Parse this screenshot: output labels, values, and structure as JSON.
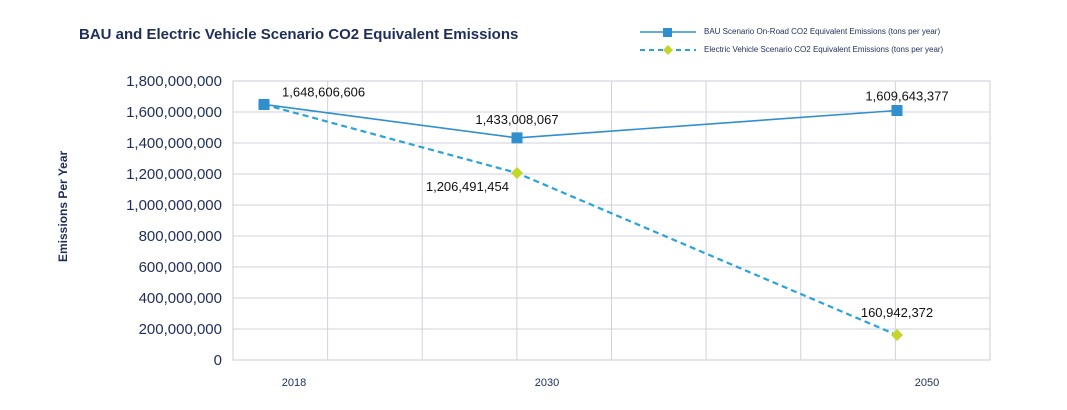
{
  "chart_data": {
    "type": "line",
    "title": "BAU and Electric Vehicle Scenario CO2 Equivalent Emissions",
    "ylabel": "Emissions Per Year",
    "xlabel": "",
    "categories": [
      "2018",
      "2030",
      "2050"
    ],
    "ylim": [
      0,
      1800000000
    ],
    "yticks": [
      "0",
      "200,000,000",
      "400,000,000",
      "600,000,000",
      "800,000,000",
      "1,000,000,000",
      "1,200,000,000",
      "1,400,000,000",
      "1,600,000,000",
      "1,800,000,000"
    ],
    "grid": true,
    "legend_position": "top-right",
    "series": [
      {
        "name": "BAU Scenario On-Road CO2 Equivalent Emissions (tons per year)",
        "values": [
          1648606606,
          1433008067,
          1609643377
        ],
        "labels": [
          "1,648,606,606",
          "1,433,008,067",
          "1,609,643,377"
        ],
        "color": "#2f8fcf",
        "marker": "square",
        "line": "solid"
      },
      {
        "name": "Electric Vehicle Scenario CO2 Equivalent Emissions (tons per year)",
        "values": [
          1648606606,
          1206491454,
          160942372
        ],
        "labels": [
          "",
          "1,206,491,454",
          "160,942,372"
        ],
        "color": "#2aa3d8",
        "marker_color": "#c4d62a",
        "marker": "diamond",
        "line": "dashed"
      }
    ]
  }
}
